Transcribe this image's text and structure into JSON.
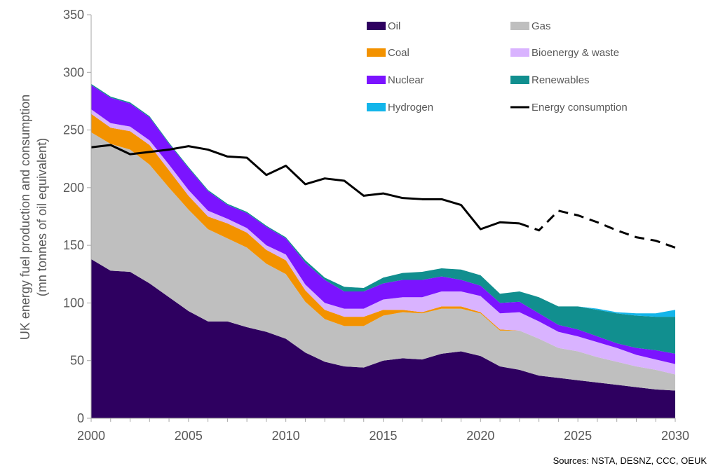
{
  "chart_data": {
    "type": "area",
    "stacked": true,
    "ylabel_lines": [
      "UK energy fuel production and consumption",
      "(mn tonnes of oil equivalent)"
    ],
    "xlim": [
      2000,
      2030
    ],
    "ylim": [
      0,
      350
    ],
    "x_ticks": [
      2000,
      2005,
      2010,
      2015,
      2020,
      2025,
      2030
    ],
    "y_ticks": [
      0,
      50,
      100,
      150,
      200,
      250,
      300,
      350
    ],
    "grid": false,
    "legend_placement": "top-right",
    "x": [
      2000,
      2001,
      2002,
      2003,
      2004,
      2005,
      2006,
      2007,
      2008,
      2009,
      2010,
      2011,
      2012,
      2013,
      2014,
      2015,
      2016,
      2017,
      2018,
      2019,
      2020,
      2021,
      2022,
      2023,
      2024,
      2025,
      2026,
      2027,
      2028,
      2029,
      2030
    ],
    "series": [
      {
        "name": "Oil",
        "color": "#2e0060",
        "values": [
          138,
          128,
          127,
          117,
          105,
          93,
          84,
          84,
          79,
          75,
          69,
          57,
          49,
          45,
          44,
          50,
          52,
          51,
          56,
          58,
          54,
          45,
          42,
          37,
          35,
          33,
          31,
          29,
          27,
          25,
          24
        ]
      },
      {
        "name": "Gas",
        "color": "#bfbfbf",
        "values": [
          110,
          110,
          106,
          103,
          95,
          88,
          80,
          72,
          69,
          59,
          56,
          44,
          37,
          35,
          36,
          39,
          40,
          40,
          39,
          37,
          37,
          31,
          34,
          32,
          26,
          25,
          22,
          20,
          18,
          17,
          14
        ]
      },
      {
        "name": "Coal",
        "color": "#f39200",
        "values": [
          16,
          14,
          16,
          17,
          15,
          12,
          11,
          13,
          13,
          12,
          12,
          10,
          8,
          8,
          8,
          5,
          2,
          1,
          2,
          2,
          1,
          1,
          0,
          0,
          0,
          0,
          0,
          0,
          0,
          0,
          0
        ]
      },
      {
        "name": "Bioenergy & waste",
        "color": "#d9b3ff",
        "values": [
          4,
          4,
          4,
          4,
          5,
          5,
          5,
          4,
          4,
          4,
          5,
          5,
          6,
          7,
          7,
          9,
          11,
          13,
          13,
          13,
          14,
          14,
          16,
          15,
          14,
          13,
          13,
          12,
          10,
          9,
          9
        ]
      },
      {
        "name": "Nuclear",
        "color": "#7b14ff",
        "values": [
          21,
          22,
          20,
          20,
          18,
          19,
          17,
          12,
          13,
          16,
          14,
          19,
          20,
          15,
          15,
          14,
          15,
          15,
          13,
          10,
          9,
          9,
          9,
          7,
          6,
          6,
          5,
          4,
          6,
          8,
          9
        ]
      },
      {
        "name": "Renewables",
        "color": "#118f8f",
        "values": [
          1,
          1,
          1,
          1,
          1,
          1,
          1,
          1,
          1,
          1,
          1,
          2,
          2,
          4,
          3,
          5,
          6,
          7,
          7,
          9,
          9,
          8,
          9,
          14,
          16,
          20,
          23,
          26,
          28,
          29,
          32
        ]
      },
      {
        "name": "Hydrogen",
        "color": "#13b5ea",
        "values": [
          0,
          0,
          0,
          0,
          0,
          0,
          0,
          0,
          0,
          0,
          0,
          0,
          0,
          0,
          0,
          0,
          0,
          0,
          0,
          0,
          0,
          0,
          0,
          0,
          0,
          0,
          1,
          1,
          2,
          3,
          6
        ]
      }
    ],
    "line_series": {
      "name": "Energy consumption",
      "color": "#000000",
      "values": [
        235,
        237,
        229,
        231,
        233,
        236,
        233,
        227,
        226,
        211,
        219,
        203,
        208,
        206,
        193,
        195,
        191,
        190,
        190,
        185,
        164,
        170,
        169,
        163,
        180,
        176,
        170,
        163,
        157,
        154,
        148
      ],
      "dashed_from": 2022
    },
    "legend": [
      "Oil",
      "Gas",
      "Coal",
      "Bioenergy & waste",
      "Nuclear",
      "Renewables",
      "Hydrogen",
      "Energy consumption"
    ],
    "source": "Sources: NSTA, DESNZ, CCC, OEUK"
  }
}
